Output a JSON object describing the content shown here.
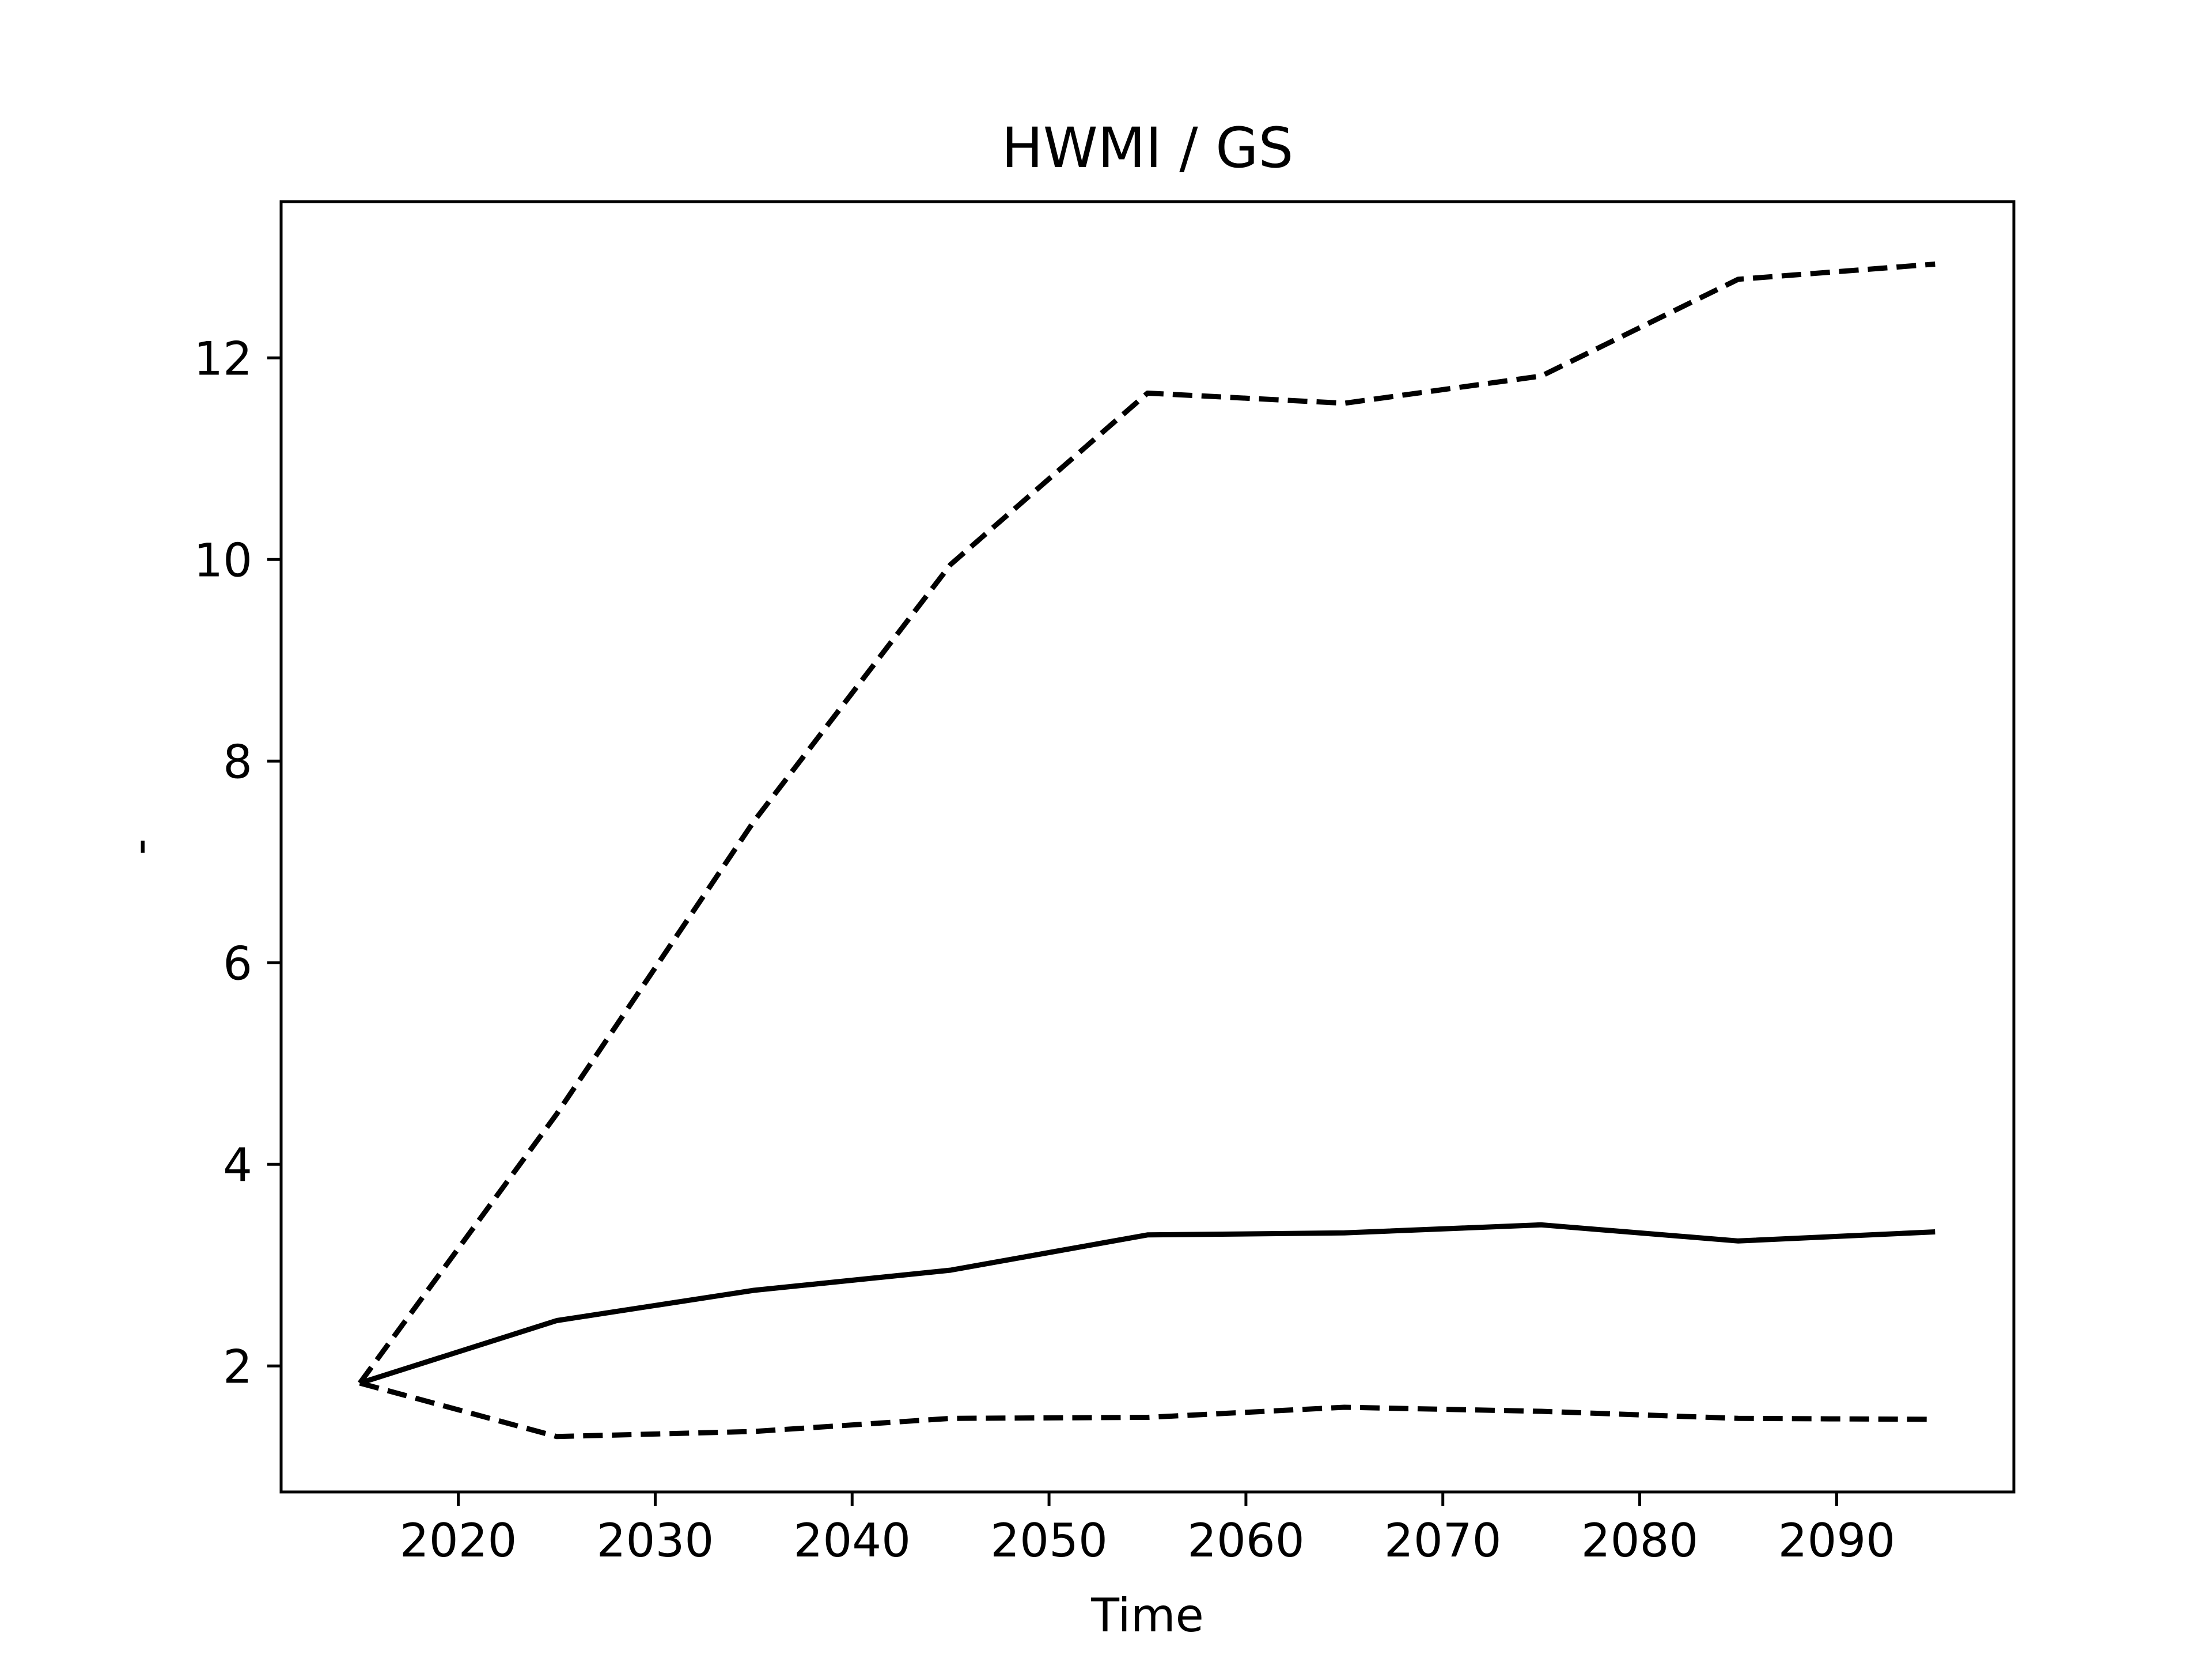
{
  "chart_data": {
    "type": "line",
    "title": "HWMI / GS",
    "xlabel": "Time",
    "ylabel": "-",
    "xlim": [
      2011,
      2099
    ],
    "ylim": [
      0.75,
      13.55
    ],
    "xticks": [
      2020,
      2030,
      2040,
      2050,
      2060,
      2070,
      2080,
      2090
    ],
    "yticks": [
      2,
      4,
      6,
      8,
      10,
      12
    ],
    "grid": false,
    "legend": "none",
    "line_color": "#000000",
    "x": [
      2015,
      2025,
      2035,
      2045,
      2055,
      2065,
      2075,
      2085,
      2095
    ],
    "series": [
      {
        "style": "solid",
        "values": [
          1.83,
          2.45,
          2.75,
          2.95,
          3.3,
          3.32,
          3.4,
          3.24,
          3.33
        ]
      },
      {
        "style": "dashed",
        "values": [
          1.83,
          4.5,
          7.4,
          9.95,
          11.65,
          11.55,
          11.82,
          12.78,
          12.93
        ]
      },
      {
        "style": "dashed",
        "values": [
          1.83,
          1.3,
          1.35,
          1.48,
          1.49,
          1.59,
          1.55,
          1.48,
          1.47
        ]
      }
    ]
  }
}
